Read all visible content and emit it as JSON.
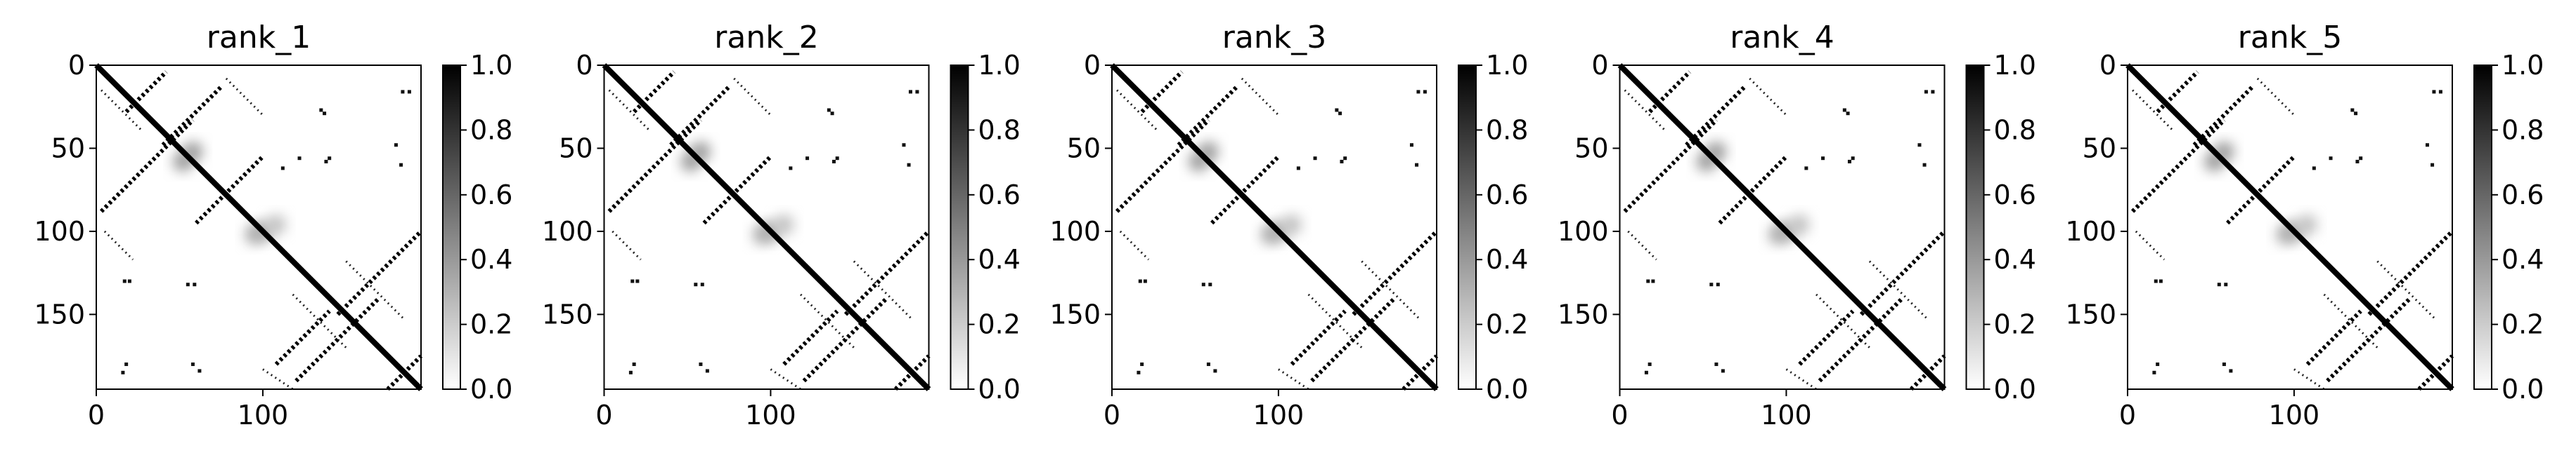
{
  "chart_data": [
    {
      "type": "heatmap",
      "title": "rank_1",
      "xticks": [
        0,
        100
      ],
      "yticks": [
        0,
        50,
        100,
        150
      ],
      "colorbar_ticks": [
        "0.0",
        "0.2",
        "0.4",
        "0.6",
        "0.8",
        "1.0"
      ],
      "extent": [
        0,
        195
      ],
      "vrange": [
        0,
        1
      ],
      "colormap": "gray_r"
    },
    {
      "type": "heatmap",
      "title": "rank_2",
      "xticks": [
        0,
        100
      ],
      "yticks": [
        0,
        50,
        100,
        150
      ],
      "colorbar_ticks": [
        "0.0",
        "0.2",
        "0.4",
        "0.6",
        "0.8",
        "1.0"
      ],
      "extent": [
        0,
        195
      ],
      "vrange": [
        0,
        1
      ],
      "colormap": "gray_r"
    },
    {
      "type": "heatmap",
      "title": "rank_3",
      "xticks": [
        0,
        100
      ],
      "yticks": [
        0,
        50,
        100,
        150
      ],
      "colorbar_ticks": [
        "0.0",
        "0.2",
        "0.4",
        "0.6",
        "0.8",
        "1.0"
      ],
      "extent": [
        0,
        195
      ],
      "vrange": [
        0,
        1
      ],
      "colormap": "gray_r"
    },
    {
      "type": "heatmap",
      "title": "rank_4",
      "xticks": [
        0,
        100
      ],
      "yticks": [
        0,
        50,
        100,
        150
      ],
      "colorbar_ticks": [
        "0.0",
        "0.2",
        "0.4",
        "0.6",
        "0.8",
        "1.0"
      ],
      "extent": [
        0,
        195
      ],
      "vrange": [
        0,
        1
      ],
      "colormap": "gray_r"
    },
    {
      "type": "heatmap",
      "title": "rank_5",
      "xticks": [
        0,
        100
      ],
      "yticks": [
        0,
        50,
        100,
        150
      ],
      "colorbar_ticks": [
        "0.0",
        "0.2",
        "0.4",
        "0.6",
        "0.8",
        "1.0"
      ],
      "extent": [
        0,
        195
      ],
      "vrange": [
        0,
        1
      ],
      "colormap": "gray_r"
    }
  ],
  "contact_pattern": {
    "diagonal": {
      "from": 0,
      "to": 195
    },
    "anti_diagonals": [
      {
        "x": [
          18,
          42
        ],
        "y": [
          28,
          4
        ]
      },
      {
        "x": [
          40,
          75
        ],
        "y": [
          48,
          13
        ]
      },
      {
        "x": [
          3,
          58
        ],
        "y": [
          88,
          33
        ]
      },
      {
        "x": [
          60,
          100
        ],
        "y": [
          95,
          55
        ]
      },
      {
        "x": [
          108,
          140
        ],
        "y": [
          180,
          148
        ]
      },
      {
        "x": [
          120,
          170
        ],
        "y": [
          190,
          140
        ]
      },
      {
        "x": [
          145,
          195
        ],
        "y": [
          150,
          100
        ]
      },
      {
        "x": [
          175,
          195
        ],
        "y": [
          195,
          175
        ]
      }
    ],
    "parallels": [
      {
        "x": [
          3,
          28
        ],
        "y": [
          15,
          40
        ]
      },
      {
        "x": [
          5,
          22
        ],
        "y": [
          100,
          117
        ]
      },
      {
        "x": [
          78,
          100
        ],
        "y": [
          8,
          30
        ]
      },
      {
        "x": [
          118,
          150
        ],
        "y": [
          138,
          170
        ]
      },
      {
        "x": [
          150,
          185
        ],
        "y": [
          118,
          153
        ]
      },
      {
        "x": [
          100,
          118
        ],
        "y": [
          183,
          195
        ]
      }
    ],
    "blobs": [
      {
        "x": 95,
        "y": 102,
        "v": 0.3
      },
      {
        "x": 100,
        "y": 100,
        "v": 0.35
      },
      {
        "x": 108,
        "y": 96,
        "v": 0.25
      },
      {
        "x": 58,
        "y": 52,
        "v": 0.4
      },
      {
        "x": 52,
        "y": 58,
        "v": 0.4
      }
    ],
    "specks": [
      {
        "x": 184,
        "y": 16
      },
      {
        "x": 188,
        "y": 16
      },
      {
        "x": 180,
        "y": 48
      },
      {
        "x": 183,
        "y": 60
      },
      {
        "x": 122,
        "y": 56
      },
      {
        "x": 138,
        "y": 58
      },
      {
        "x": 140,
        "y": 56
      },
      {
        "x": 17,
        "y": 130
      },
      {
        "x": 20,
        "y": 130
      },
      {
        "x": 55,
        "y": 132
      },
      {
        "x": 59,
        "y": 132
      },
      {
        "x": 16,
        "y": 185
      },
      {
        "x": 18,
        "y": 180
      },
      {
        "x": 58,
        "y": 180
      },
      {
        "x": 62,
        "y": 184
      },
      {
        "x": 112,
        "y": 62
      },
      {
        "x": 135,
        "y": 27
      },
      {
        "x": 137,
        "y": 29
      }
    ]
  }
}
